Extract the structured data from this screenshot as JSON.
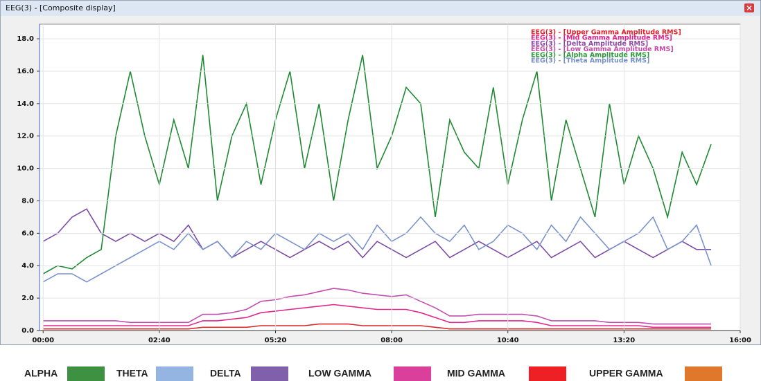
{
  "window_title": "EEG(3) - [Composite display]",
  "chart_data": {
    "type": "line",
    "x": [
      0,
      20,
      40,
      60,
      80,
      100,
      120,
      140,
      160,
      180,
      200,
      220,
      240,
      260,
      280,
      300,
      320,
      340,
      360,
      380,
      400,
      420,
      440,
      460,
      480,
      500,
      520,
      540,
      560,
      580,
      600,
      620,
      640,
      660,
      680,
      700,
      720,
      740,
      760,
      780,
      800,
      820,
      840,
      860,
      880,
      900,
      920
    ],
    "xlim": [
      -5,
      960
    ],
    "xticks": [
      {
        "value": 0,
        "label": "00:00"
      },
      {
        "value": 160,
        "label": "02:40"
      },
      {
        "value": 320,
        "label": "05:20"
      },
      {
        "value": 480,
        "label": "08:00"
      },
      {
        "value": 640,
        "label": "10:40"
      },
      {
        "value": 800,
        "label": "13:20"
      },
      {
        "value": 960,
        "label": "16:00"
      }
    ],
    "ylim": [
      0,
      18.9
    ],
    "yticks": [
      {
        "value": 0,
        "label": "0.0"
      },
      {
        "value": 2,
        "label": "2.0"
      },
      {
        "value": 4,
        "label": "4.0"
      },
      {
        "value": 6,
        "label": "6.0"
      },
      {
        "value": 8,
        "label": "8.0"
      },
      {
        "value": 10,
        "label": "10.0"
      },
      {
        "value": 12,
        "label": "12.0"
      },
      {
        "value": 14,
        "label": "14.0"
      },
      {
        "value": 16,
        "label": "16.0"
      },
      {
        "value": 18,
        "label": "18.0"
      }
    ],
    "grid": true,
    "series": [
      {
        "name": "ALPHA",
        "color": "#1e8a32",
        "legend_color": "#3e9140",
        "values": [
          3.5,
          4,
          3.8,
          4.5,
          5,
          12,
          16,
          12,
          9,
          13,
          10,
          17,
          8,
          12,
          14,
          9,
          13,
          16,
          10,
          14,
          8,
          13,
          17,
          10,
          12,
          15,
          14,
          7,
          13,
          11,
          10,
          15,
          9,
          13,
          16,
          8,
          13,
          10,
          7,
          14,
          9,
          12,
          10,
          7,
          11,
          9,
          11.5
        ]
      },
      {
        "name": "THETA",
        "color": "#7a92cc",
        "legend_color": "#94b5e2",
        "values": [
          3,
          3.5,
          3.5,
          3,
          3.5,
          4,
          4.5,
          5,
          5.5,
          5,
          6,
          5,
          5.5,
          4.5,
          5.5,
          5,
          6,
          5.5,
          5,
          6,
          5.5,
          6,
          5,
          6.5,
          5.5,
          6,
          7,
          6,
          5.5,
          6.5,
          5,
          5.5,
          6.5,
          6,
          5,
          6.5,
          5.5,
          7,
          6,
          5,
          5.5,
          6,
          7,
          5,
          5.5,
          6.5,
          4
        ]
      },
      {
        "name": "DELTA",
        "color": "#7c4ca4",
        "legend_color": "#8060aa",
        "values": [
          5.5,
          6,
          7,
          7.5,
          6,
          5.5,
          6,
          5.5,
          6,
          5.5,
          6.5,
          5,
          5.5,
          4.5,
          5,
          5.5,
          5,
          4.5,
          5,
          5.5,
          5,
          5.5,
          4.5,
          5.5,
          5,
          4.5,
          5,
          5.5,
          4.5,
          5,
          5.5,
          5,
          4.5,
          5,
          5.5,
          4.5,
          5,
          5.5,
          4.5,
          5,
          5.5,
          5,
          4.5,
          5,
          5.5,
          5,
          5
        ]
      },
      {
        "name": "LOW GAMMA",
        "color": "#c24fb0",
        "legend_color": "#da3f9c",
        "values": [
          0.6,
          0.6,
          0.6,
          0.6,
          0.6,
          0.6,
          0.5,
          0.5,
          0.5,
          0.5,
          0.5,
          1,
          1,
          1.1,
          1.3,
          1.8,
          1.9,
          2.1,
          2.2,
          2.4,
          2.6,
          2.5,
          2.3,
          2.2,
          2.1,
          2.2,
          1.8,
          1.4,
          0.9,
          0.9,
          1,
          1,
          1,
          1,
          0.9,
          0.6,
          0.6,
          0.6,
          0.6,
          0.5,
          0.5,
          0.5,
          0.4,
          0.4,
          0.4,
          0.4,
          0.4
        ]
      },
      {
        "name": "MID GAMMA",
        "color": "#e0288c",
        "legend_color": "#ee2024",
        "values": [
          0.3,
          0.3,
          0.3,
          0.3,
          0.3,
          0.3,
          0.3,
          0.3,
          0.3,
          0.3,
          0.3,
          0.6,
          0.6,
          0.7,
          0.8,
          1.1,
          1.2,
          1.3,
          1.4,
          1.5,
          1.6,
          1.5,
          1.4,
          1.3,
          1.3,
          1.3,
          1.1,
          0.8,
          0.5,
          0.5,
          0.6,
          0.6,
          0.6,
          0.6,
          0.5,
          0.3,
          0.3,
          0.3,
          0.3,
          0.3,
          0.3,
          0.3,
          0.2,
          0.2,
          0.2,
          0.2,
          0.2
        ]
      },
      {
        "name": "UPPER GAMMA",
        "color": "#d42a2a",
        "legend_color": "#e0782c",
        "values": [
          0.1,
          0.1,
          0.1,
          0.1,
          0.1,
          0.1,
          0.1,
          0.1,
          0.1,
          0.1,
          0.1,
          0.2,
          0.2,
          0.2,
          0.2,
          0.3,
          0.3,
          0.3,
          0.3,
          0.4,
          0.4,
          0.4,
          0.3,
          0.3,
          0.3,
          0.3,
          0.3,
          0.2,
          0.1,
          0.1,
          0.1,
          0.1,
          0.1,
          0.1,
          0.1,
          0.1,
          0.1,
          0.1,
          0.1,
          0.1,
          0.1,
          0.1,
          0.1,
          0.1,
          0.1,
          0.1,
          0.1
        ]
      }
    ],
    "trace_legend": [
      {
        "text": "EEG(3) - [Upper Gamma Amplitude RMS]",
        "color": "#e8202a"
      },
      {
        "text": "EEG(3) - [Mid Gamma Amplitude RMS]",
        "color": "#e0208a"
      },
      {
        "text": "EEG(3) - [Delta Amplitude RMS]",
        "color": "#8a4aa8"
      },
      {
        "text": "EEG(3) - [Low Gamma Amplitude RMS]",
        "color": "#c84aa8"
      },
      {
        "text": "EEG(3) - [Alpha Amplitude RMS]",
        "color": "#2a9a3a"
      },
      {
        "text": "EEG(3) - [Theta Amplitude RMS]",
        "color": "#7890c8"
      }
    ]
  }
}
